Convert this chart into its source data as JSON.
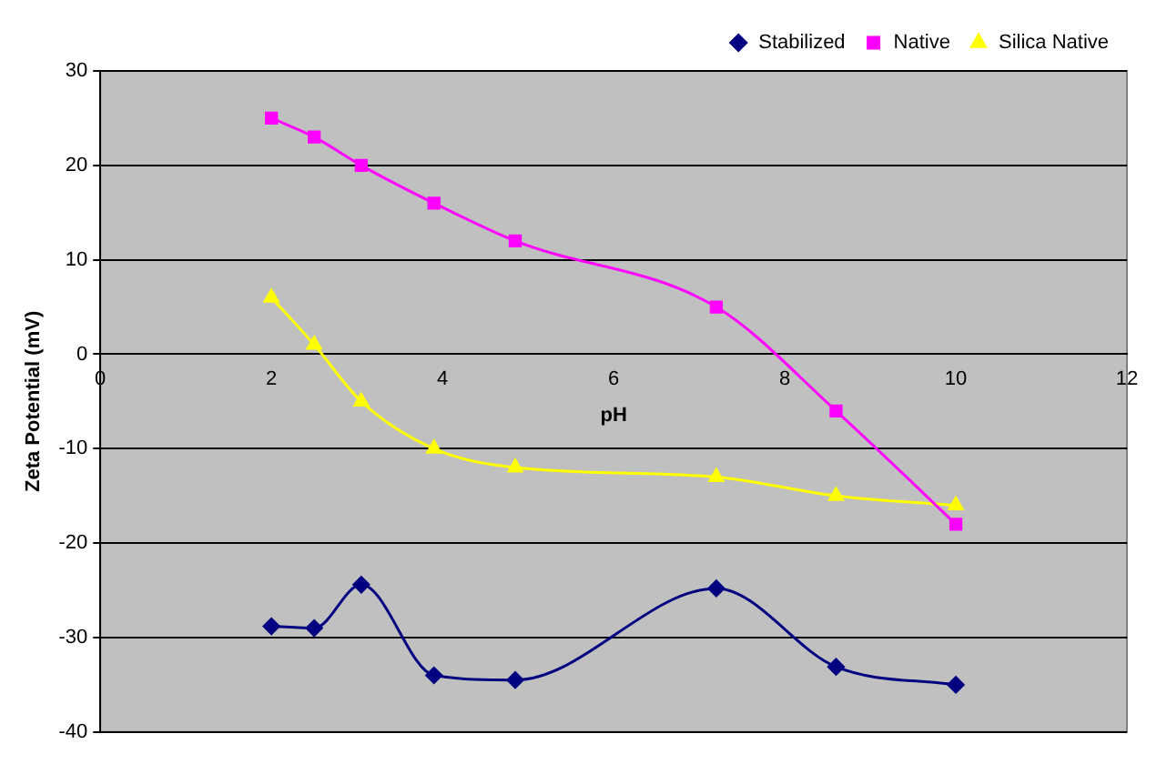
{
  "chart_data": {
    "type": "line",
    "xlabel": "pH",
    "ylabel": "Zeta Potential (mV)",
    "xlim": [
      0,
      12
    ],
    "xticks": [
      0,
      2,
      4,
      6,
      8,
      10,
      12
    ],
    "ylim": [
      -40,
      30
    ],
    "yticks": [
      -40,
      -30,
      -20,
      -10,
      0,
      10,
      20,
      30
    ],
    "grid": "y",
    "legend": "top right",
    "series": [
      {
        "name": "Stabilized",
        "color": "#000080",
        "marker": "diamond",
        "x": [
          2,
          2.5,
          3.05,
          3.9,
          4.85,
          7.2,
          8.6,
          10
        ],
        "values": [
          -28.8,
          -29,
          -24.4,
          -34,
          -34.5,
          -24.8,
          -33.1,
          -35
        ]
      },
      {
        "name": "Native",
        "color": "#ff00ff",
        "marker": "square",
        "x": [
          2,
          2.5,
          3.05,
          3.9,
          4.85,
          7.2,
          8.6,
          10
        ],
        "values": [
          25,
          23,
          20,
          16,
          12,
          5,
          -6,
          -18
        ]
      },
      {
        "name": "Silica Native",
        "color": "#ffff00",
        "marker": "triangle",
        "x": [
          2,
          2.5,
          3.05,
          3.9,
          4.85,
          7.2,
          8.6,
          10
        ],
        "values": [
          6,
          1,
          -5,
          -10,
          -12,
          -13,
          -15,
          -16
        ]
      }
    ]
  }
}
